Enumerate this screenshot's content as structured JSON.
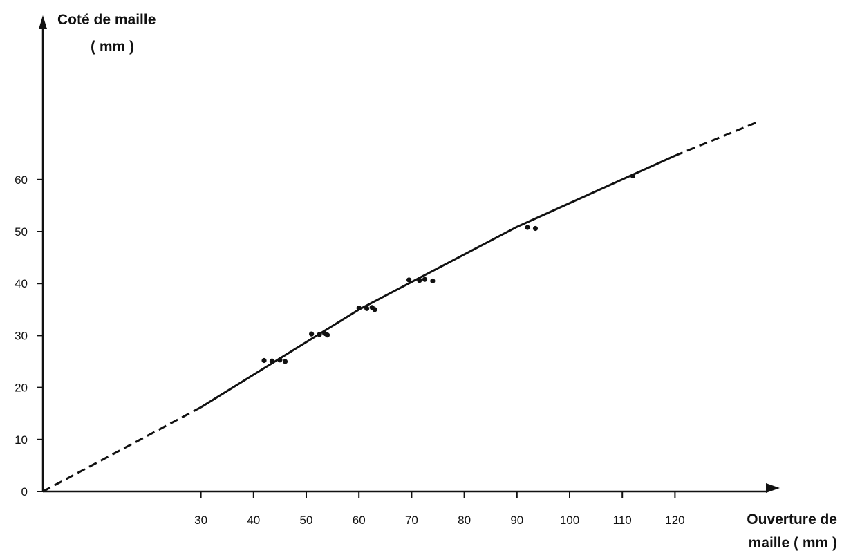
{
  "chart_data": {
    "type": "scatter",
    "title": "",
    "ylabel": "Coté de maille",
    "ylabel_unit": "( mm )",
    "xlabel": "Ouverture de",
    "xlabel_line2": "maille ( mm )",
    "x_ticks": [
      "30",
      "40",
      "50",
      "60",
      "70",
      "80",
      "90",
      "100",
      "110",
      "120"
    ],
    "y_ticks": [
      "0",
      "10",
      "20",
      "30",
      "40",
      "50",
      "60"
    ],
    "xlim": [
      0,
      140
    ],
    "ylim": [
      0,
      75
    ],
    "grid": false,
    "series": [
      {
        "type": "scatter",
        "x": [
          42,
          43.5,
          45,
          46,
          51,
          52.5,
          53.5,
          54,
          60,
          61.5,
          62.5,
          63,
          69.5,
          71.5,
          72.5,
          74,
          92,
          93.5,
          112
        ],
        "y": [
          25.2,
          25.1,
          25.3,
          25.0,
          30.3,
          30.2,
          30.4,
          30.1,
          35.3,
          35.2,
          35.4,
          35.0,
          40.7,
          40.6,
          40.8,
          40.5,
          50.8,
          50.6,
          60.7
        ]
      },
      {
        "type": "line",
        "style": "solid",
        "x": [
          30,
          60,
          90,
          120
        ],
        "y": [
          16.2,
          35.0,
          50.9,
          64.6
        ]
      },
      {
        "type": "line",
        "style": "dashed",
        "x": [
          0,
          30
        ],
        "y": [
          0,
          16.2
        ]
      },
      {
        "type": "line",
        "style": "dashed",
        "x": [
          120,
          136
        ],
        "y": [
          64.6,
          71.2
        ]
      }
    ]
  }
}
